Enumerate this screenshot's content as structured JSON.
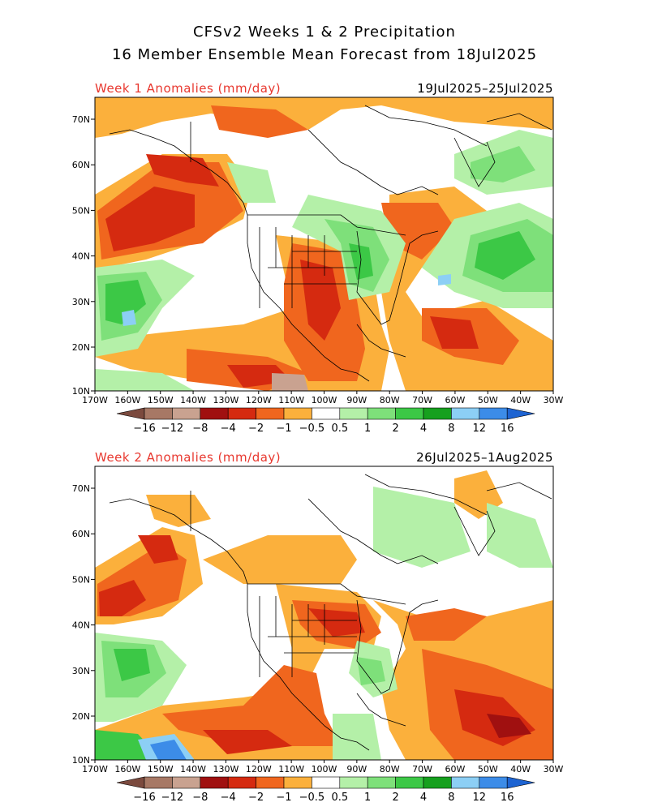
{
  "header": {
    "title_line1": "CFSv2 Weeks 1 & 2 Precipitation",
    "title_line2": "16 Member Ensemble Mean Forecast from 18Jul2025"
  },
  "panels": [
    {
      "label": "Week 1 Anomalies (mm/day)",
      "dates": "19Jul2025–25Jul2025"
    },
    {
      "label": "Week 2 Anomalies (mm/day)",
      "dates": "26Jul2025–1Aug2025"
    }
  ],
  "axes": {
    "lat_ticks": [
      "70N",
      "60N",
      "50N",
      "40N",
      "30N",
      "20N",
      "10N"
    ],
    "lon_ticks": [
      "170W",
      "160W",
      "150W",
      "140W",
      "130W",
      "120W",
      "110W",
      "100W",
      "90W",
      "80W",
      "70W",
      "60W",
      "50W",
      "40W",
      "30W"
    ]
  },
  "colorbar": {
    "labels": [
      "−16",
      "−12",
      "−8",
      "−4",
      "−2",
      "−1",
      "−0.5",
      "0.5",
      "1",
      "2",
      "4",
      "8",
      "12",
      "16"
    ],
    "colors": [
      "#7b4a3e",
      "#a77865",
      "#c9a290",
      "#a01010",
      "#d52a10",
      "#f0661e",
      "#fbb03c",
      "#ffffff",
      "#b4f0a8",
      "#7ee07a",
      "#3cc846",
      "#16a01e",
      "#8ccff5",
      "#3c8ce8",
      "#1e64d2"
    ]
  }
}
